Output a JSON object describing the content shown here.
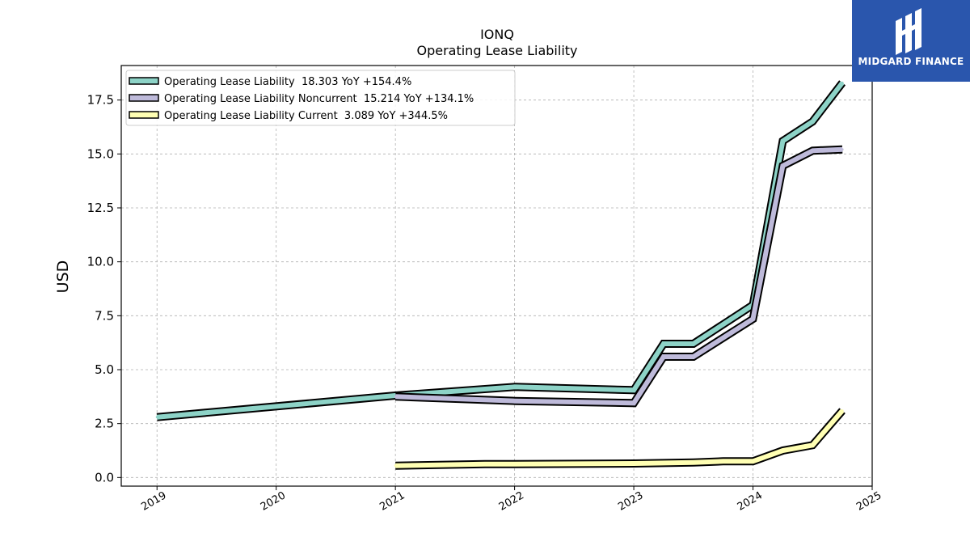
{
  "brand": {
    "name": "MIDGARD FINANCE",
    "bg_color": "#2a56ad"
  },
  "chart_data": {
    "type": "line",
    "title": "IONQ",
    "subtitle": "Operating Lease Liability",
    "xlabel": "",
    "ylabel": "USD",
    "xlim": [
      2018.7,
      2025.0
    ],
    "ylim": [
      -0.4,
      19.1
    ],
    "x_ticks": [
      2019,
      2020,
      2021,
      2022,
      2023,
      2024,
      2025
    ],
    "y_ticks": [
      0.0,
      2.5,
      5.0,
      7.5,
      10.0,
      12.5,
      15.0,
      17.5
    ],
    "y_tick_labels": [
      "0.0",
      "2.5",
      "5.0",
      "7.5",
      "10.0",
      "12.5",
      "15.0",
      "17.5"
    ],
    "grid": true,
    "legend_position": "top-left",
    "series": [
      {
        "name": "Operating Lease Liability  18.303 YoY +154.4%",
        "color": "#8dd3c7",
        "x": [
          2019.0,
          2021.0,
          2022.0,
          2023.0,
          2023.25,
          2023.5,
          2024.0,
          2024.25,
          2024.5,
          2024.75
        ],
        "y": [
          2.8,
          3.8,
          4.2,
          4.05,
          6.2,
          6.2,
          8.0,
          15.6,
          16.5,
          18.3
        ]
      },
      {
        "name": "Operating Lease Liability Noncurrent  15.214 YoY +134.1%",
        "color": "#bebada",
        "x": [
          2021.0,
          2022.0,
          2023.0,
          2023.25,
          2023.5,
          2024.0,
          2024.25,
          2024.5,
          2024.75
        ],
        "y": [
          3.75,
          3.55,
          3.45,
          5.6,
          5.6,
          7.35,
          14.45,
          15.15,
          15.21
        ]
      },
      {
        "name": "Operating Lease Liability Current  3.089 YoY +344.5%",
        "color": "#ffffb3",
        "x": [
          2021.0,
          2021.75,
          2022.0,
          2023.0,
          2023.5,
          2023.75,
          2024.0,
          2024.25,
          2024.5,
          2024.75
        ],
        "y": [
          0.55,
          0.62,
          0.62,
          0.65,
          0.7,
          0.75,
          0.75,
          1.25,
          1.5,
          3.1
        ]
      }
    ]
  }
}
